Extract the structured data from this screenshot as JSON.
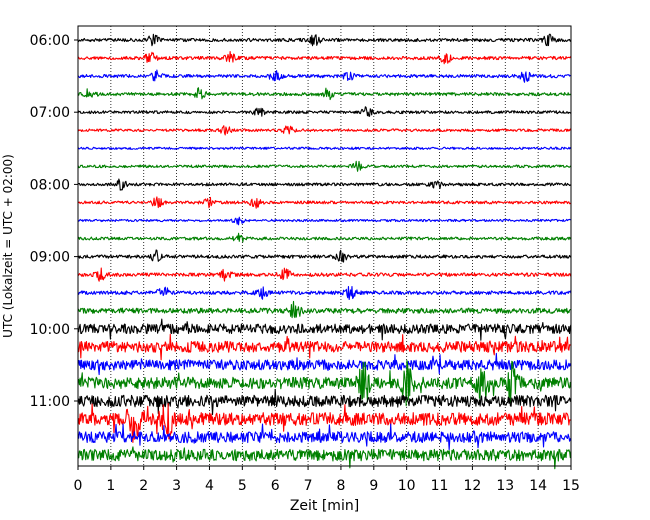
{
  "chart_data": {
    "type": "line",
    "subtype": "helicorder",
    "xlabel": "Zeit  [min]",
    "ylabel": "UTC (Lokalzeit = UTC + 02:00)",
    "xlim": [
      0,
      15
    ],
    "x_ticks": [
      "0",
      "1",
      "2",
      "3",
      "4",
      "5",
      "6",
      "7",
      "8",
      "9",
      "10",
      "11",
      "12",
      "13",
      "14",
      "15"
    ],
    "y_tick_labels": [
      "06:00",
      "07:00",
      "08:00",
      "09:00",
      "10:00",
      "11:00"
    ],
    "grid": "vertical dotted",
    "trace_colors": [
      "#000000",
      "#ff0000",
      "#0000ff",
      "#008000"
    ],
    "rows": [
      {
        "time": "06:00",
        "color": "#000000",
        "amplitude": 1.0,
        "events": [
          2.3,
          7.2,
          14.3
        ]
      },
      {
        "time": "06:15",
        "color": "#ff0000",
        "amplitude": 1.0,
        "events": [
          2.2,
          4.6,
          11.2
        ]
      },
      {
        "time": "06:30",
        "color": "#0000ff",
        "amplitude": 1.0,
        "events": [
          2.4,
          6.0,
          8.2,
          13.6
        ]
      },
      {
        "time": "06:45",
        "color": "#008000",
        "amplitude": 1.0,
        "events": [
          0.35,
          3.7,
          7.6
        ]
      },
      {
        "time": "07:00",
        "color": "#000000",
        "amplitude": 0.9,
        "events": [
          5.5,
          8.8
        ]
      },
      {
        "time": "07:15",
        "color": "#ff0000",
        "amplitude": 0.8,
        "events": [
          4.5,
          6.4
        ]
      },
      {
        "time": "07:30",
        "color": "#0000ff",
        "amplitude": 0.7,
        "events": []
      },
      {
        "time": "07:45",
        "color": "#008000",
        "amplitude": 0.8,
        "events": [
          8.5
        ]
      },
      {
        "time": "08:00",
        "color": "#000000",
        "amplitude": 0.9,
        "events": [
          1.3,
          10.9
        ]
      },
      {
        "time": "08:15",
        "color": "#ff0000",
        "amplitude": 0.9,
        "events": [
          2.4,
          4.0,
          5.4
        ]
      },
      {
        "time": "08:30",
        "color": "#0000ff",
        "amplitude": 0.7,
        "events": [
          4.9
        ]
      },
      {
        "time": "08:45",
        "color": "#008000",
        "amplitude": 0.9,
        "events": [
          4.9
        ]
      },
      {
        "time": "09:00",
        "color": "#000000",
        "amplitude": 1.0,
        "events": [
          2.4,
          8.0
        ]
      },
      {
        "time": "09:15",
        "color": "#ff0000",
        "amplitude": 1.1,
        "events": [
          0.7,
          4.5,
          6.3
        ]
      },
      {
        "time": "09:30",
        "color": "#0000ff",
        "amplitude": 1.1,
        "events": [
          2.6,
          5.6,
          8.3
        ]
      },
      {
        "time": "09:45",
        "color": "#008000",
        "amplitude": 1.6,
        "events": [
          6.6
        ]
      },
      {
        "time": "10:00",
        "color": "#000000",
        "amplitude": 3.0,
        "events": []
      },
      {
        "time": "10:15",
        "color": "#ff0000",
        "amplitude": 3.4,
        "events": []
      },
      {
        "time": "10:30",
        "color": "#0000ff",
        "amplitude": 3.2,
        "events": []
      },
      {
        "time": "10:45",
        "color": "#008000",
        "amplitude": 3.6,
        "events": [
          8.7,
          10.0,
          12.3,
          13.2
        ]
      },
      {
        "time": "11:00",
        "color": "#000000",
        "amplitude": 3.6,
        "events": []
      },
      {
        "time": "11:15",
        "color": "#ff0000",
        "amplitude": 4.0,
        "events": [
          1.7,
          2.7
        ]
      },
      {
        "time": "11:30",
        "color": "#0000ff",
        "amplitude": 3.4,
        "events": []
      },
      {
        "time": "11:45",
        "color": "#008000",
        "amplitude": 3.6,
        "events": []
      }
    ]
  }
}
